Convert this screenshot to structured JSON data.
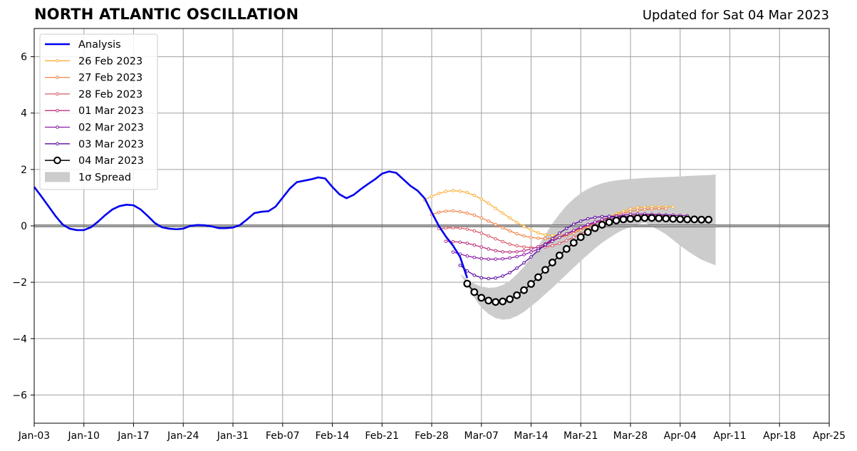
{
  "title": "NORTH ATLANTIC OSCILLATION",
  "updated": "Updated for Sat 04 Mar 2023",
  "chart_data": {
    "type": "line",
    "title": "NORTH ATLANTIC OSCILLATION",
    "xlabel": "",
    "ylabel": "",
    "xlim": [
      "2023-01-03",
      "2023-04-25"
    ],
    "ylim": [
      -7,
      7
    ],
    "grid": true,
    "legend_position": "top-left",
    "x_ticks": [
      "Jan-03",
      "Jan-10",
      "Jan-17",
      "Jan-24",
      "Jan-31",
      "Feb-07",
      "Feb-14",
      "Feb-21",
      "Feb-28",
      "Mar-07",
      "Mar-14",
      "Mar-21",
      "Mar-28",
      "Apr-04",
      "Apr-11",
      "Apr-18",
      "Apr-25"
    ],
    "y_ticks": [
      6,
      4,
      2,
      0,
      -2,
      -4,
      -6
    ],
    "y_tick_labels": [
      "6",
      "4",
      "2",
      "0",
      "−2",
      "−4",
      "−6"
    ],
    "analysis": {
      "name": "Analysis",
      "color": "#0000ee",
      "start": "2023-01-03",
      "values": [
        1.38,
        1.05,
        0.7,
        0.35,
        0.05,
        -0.1,
        -0.15,
        -0.15,
        -0.05,
        0.15,
        0.38,
        0.58,
        0.7,
        0.75,
        0.73,
        0.58,
        0.35,
        0.1,
        -0.05,
        -0.1,
        -0.12,
        -0.1,
        0.0,
        0.03,
        0.02,
        -0.02,
        -0.08,
        -0.08,
        -0.06,
        0.03,
        0.23,
        0.45,
        0.5,
        0.52,
        0.68,
        1.0,
        1.32,
        1.55,
        1.6,
        1.65,
        1.72,
        1.68,
        1.38,
        1.12,
        0.98,
        1.1,
        1.3,
        1.48,
        1.65,
        1.85,
        1.93,
        1.88,
        1.65,
        1.42,
        1.25,
        0.98,
        0.48,
        0.0,
        -0.38,
        -0.7,
        -1.1,
        -1.85
      ]
    },
    "forecasts": [
      {
        "name": "26 Feb 2023",
        "color": "#fbb03b",
        "start": "2023-02-27",
        "values": [
          0.92,
          1.05,
          1.15,
          1.22,
          1.25,
          1.23,
          1.18,
          1.08,
          0.95,
          0.8,
          0.62,
          0.45,
          0.28,
          0.12,
          -0.02,
          -0.15,
          -0.25,
          -0.32,
          -0.34,
          -0.32,
          -0.28,
          -0.2,
          -0.12,
          -0.02,
          0.1,
          0.2,
          0.32,
          0.43,
          0.52,
          0.6,
          0.64,
          0.66,
          0.68,
          0.68,
          0.68,
          0.67
        ]
      },
      {
        "name": "27 Feb 2023",
        "color": "#f0834c",
        "start": "2023-02-28",
        "values": [
          0.4,
          0.48,
          0.52,
          0.53,
          0.5,
          0.45,
          0.38,
          0.28,
          0.17,
          0.05,
          -0.07,
          -0.18,
          -0.28,
          -0.36,
          -0.41,
          -0.44,
          -0.45,
          -0.44,
          -0.41,
          -0.35,
          -0.26,
          -0.15,
          -0.04,
          0.08,
          0.2,
          0.3,
          0.38,
          0.45,
          0.51,
          0.55,
          0.58,
          0.6,
          0.61,
          0.61
        ]
      },
      {
        "name": "28 Feb 2023",
        "color": "#da5a6a",
        "start": "2023-03-01",
        "values": [
          -0.1,
          -0.08,
          -0.07,
          -0.08,
          -0.12,
          -0.18,
          -0.26,
          -0.36,
          -0.46,
          -0.56,
          -0.65,
          -0.71,
          -0.75,
          -0.77,
          -0.77,
          -0.75,
          -0.7,
          -0.62,
          -0.52,
          -0.4,
          -0.28,
          -0.16,
          -0.06,
          0.04,
          0.12,
          0.2,
          0.26,
          0.3,
          0.33,
          0.34,
          0.35,
          0.35,
          0.35
        ]
      },
      {
        "name": "01 Mar 2023",
        "color": "#b8327f",
        "start": "2023-03-02",
        "values": [
          -0.55,
          -0.56,
          -0.58,
          -0.62,
          -0.68,
          -0.75,
          -0.82,
          -0.88,
          -0.92,
          -0.93,
          -0.92,
          -0.88,
          -0.82,
          -0.74,
          -0.64,
          -0.53,
          -0.41,
          -0.3,
          -0.18,
          -0.08,
          0.02,
          0.1,
          0.17,
          0.23,
          0.28,
          0.32,
          0.35,
          0.37,
          0.38,
          0.38,
          0.38,
          0.38,
          0.38
        ]
      },
      {
        "name": "02 Mar 2023",
        "color": "#8b1ca8",
        "start": "2023-03-03",
        "values": [
          -0.93,
          -1.0,
          -1.07,
          -1.12,
          -1.16,
          -1.18,
          -1.18,
          -1.17,
          -1.14,
          -1.09,
          -1.02,
          -0.93,
          -0.82,
          -0.69,
          -0.55,
          -0.41,
          -0.28,
          -0.16,
          -0.05,
          0.05,
          0.14,
          0.22,
          0.29,
          0.34,
          0.38,
          0.41,
          0.42,
          0.42,
          0.41,
          0.4,
          0.39,
          0.38,
          0.37,
          0.36
        ]
      },
      {
        "name": "03 Mar 2023",
        "color": "#5b0aa0",
        "start": "2023-03-04",
        "values": [
          -1.4,
          -1.6,
          -1.75,
          -1.84,
          -1.87,
          -1.85,
          -1.78,
          -1.66,
          -1.5,
          -1.31,
          -1.1,
          -0.88,
          -0.66,
          -0.45,
          -0.26,
          -0.09,
          0.06,
          0.17,
          0.25,
          0.3,
          0.33,
          0.34,
          0.34,
          0.33,
          0.32,
          0.31,
          0.3,
          0.29,
          0.28,
          0.27,
          0.26,
          0.25,
          0.24
        ]
      }
    ],
    "current": {
      "name": "04 Mar 2023",
      "color": "#000000",
      "start": "2023-03-05",
      "values": [
        -2.05,
        -2.35,
        -2.55,
        -2.65,
        -2.7,
        -2.68,
        -2.6,
        -2.46,
        -2.28,
        -2.06,
        -1.82,
        -1.56,
        -1.3,
        -1.05,
        -0.82,
        -0.6,
        -0.4,
        -0.22,
        -0.08,
        0.04,
        0.13,
        0.19,
        0.23,
        0.25,
        0.27,
        0.28,
        0.28,
        0.27,
        0.26,
        0.25,
        0.24,
        0.23,
        0.23,
        0.22,
        0.22
      ]
    },
    "spread": {
      "name": "1σ Spread",
      "color": "#cccccc",
      "start": "2023-03-04",
      "upper": [
        -1.7,
        -1.9,
        -2.05,
        -2.15,
        -2.2,
        -2.18,
        -2.1,
        -1.95,
        -1.72,
        -1.45,
        -1.1,
        -0.72,
        -0.32,
        0.08,
        0.42,
        0.72,
        0.96,
        1.16,
        1.31,
        1.42,
        1.51,
        1.57,
        1.61,
        1.64,
        1.66,
        1.68,
        1.7,
        1.71,
        1.72,
        1.73,
        1.74,
        1.75,
        1.77,
        1.78,
        1.79,
        1.8,
        1.82
      ],
      "lower": [
        -1.7,
        -2.1,
        -2.55,
        -2.9,
        -3.12,
        -3.27,
        -3.33,
        -3.3,
        -3.2,
        -3.05,
        -2.85,
        -2.65,
        -2.42,
        -2.2,
        -1.96,
        -1.72,
        -1.48,
        -1.24,
        -1.02,
        -0.8,
        -0.6,
        -0.43,
        -0.27,
        -0.14,
        -0.04,
        0.05,
        0.12,
        -0.02,
        -0.15,
        -0.3,
        -0.5,
        -0.7,
        -0.88,
        -1.05,
        -1.2,
        -1.3,
        -1.4
      ]
    },
    "legend": [
      "Analysis",
      "26 Feb 2023",
      "27 Feb 2023",
      "28 Feb 2023",
      "01 Mar 2023",
      "02 Mar 2023",
      "03 Mar 2023",
      "04 Mar 2023",
      "1σ Spread"
    ]
  }
}
